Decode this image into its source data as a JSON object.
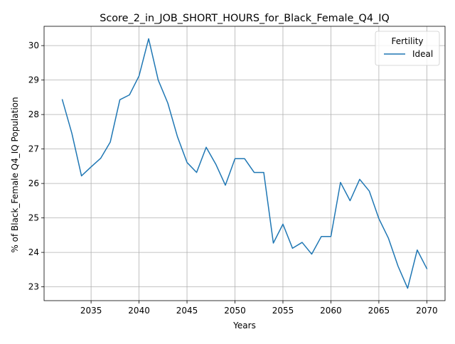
{
  "chart_data": {
    "type": "line",
    "title": "Score_2_in_JOB_SHORT_HOURS_for_Black_Female_Q4_IQ",
    "xlabel": "Years",
    "ylabel": "% of Black_Female Q4_IQ Population",
    "xlim": [
      2030.1,
      2071.9
    ],
    "ylim": [
      22.6,
      30.56
    ],
    "xticks": [
      2035,
      2040,
      2045,
      2050,
      2055,
      2060,
      2065,
      2070
    ],
    "yticks": [
      23,
      24,
      25,
      26,
      27,
      28,
      29,
      30
    ],
    "grid": true,
    "legend": {
      "title": "Fertility",
      "position": "top-right"
    },
    "series": [
      {
        "name": "Ideal",
        "color": "#1f77b4",
        "x": [
          2032,
          2033,
          2034,
          2035,
          2036,
          2037,
          2038,
          2039,
          2040,
          2041,
          2042,
          2043,
          2044,
          2045,
          2046,
          2047,
          2048,
          2049,
          2050,
          2051,
          2052,
          2053,
          2054,
          2055,
          2056,
          2057,
          2058,
          2059,
          2060,
          2061,
          2062,
          2063,
          2064,
          2065,
          2066,
          2067,
          2068,
          2069,
          2070
        ],
        "y": [
          28.43,
          27.45,
          26.22,
          26.48,
          26.73,
          27.2,
          28.43,
          28.57,
          29.12,
          30.2,
          29.0,
          28.33,
          27.36,
          26.61,
          26.32,
          27.05,
          26.56,
          25.95,
          26.72,
          26.72,
          26.32,
          26.32,
          24.27,
          24.82,
          24.12,
          24.29,
          23.95,
          24.46,
          24.46,
          26.03,
          25.5,
          26.12,
          25.78,
          24.98,
          24.41,
          23.6,
          22.96,
          24.07,
          23.53
        ]
      }
    ]
  }
}
